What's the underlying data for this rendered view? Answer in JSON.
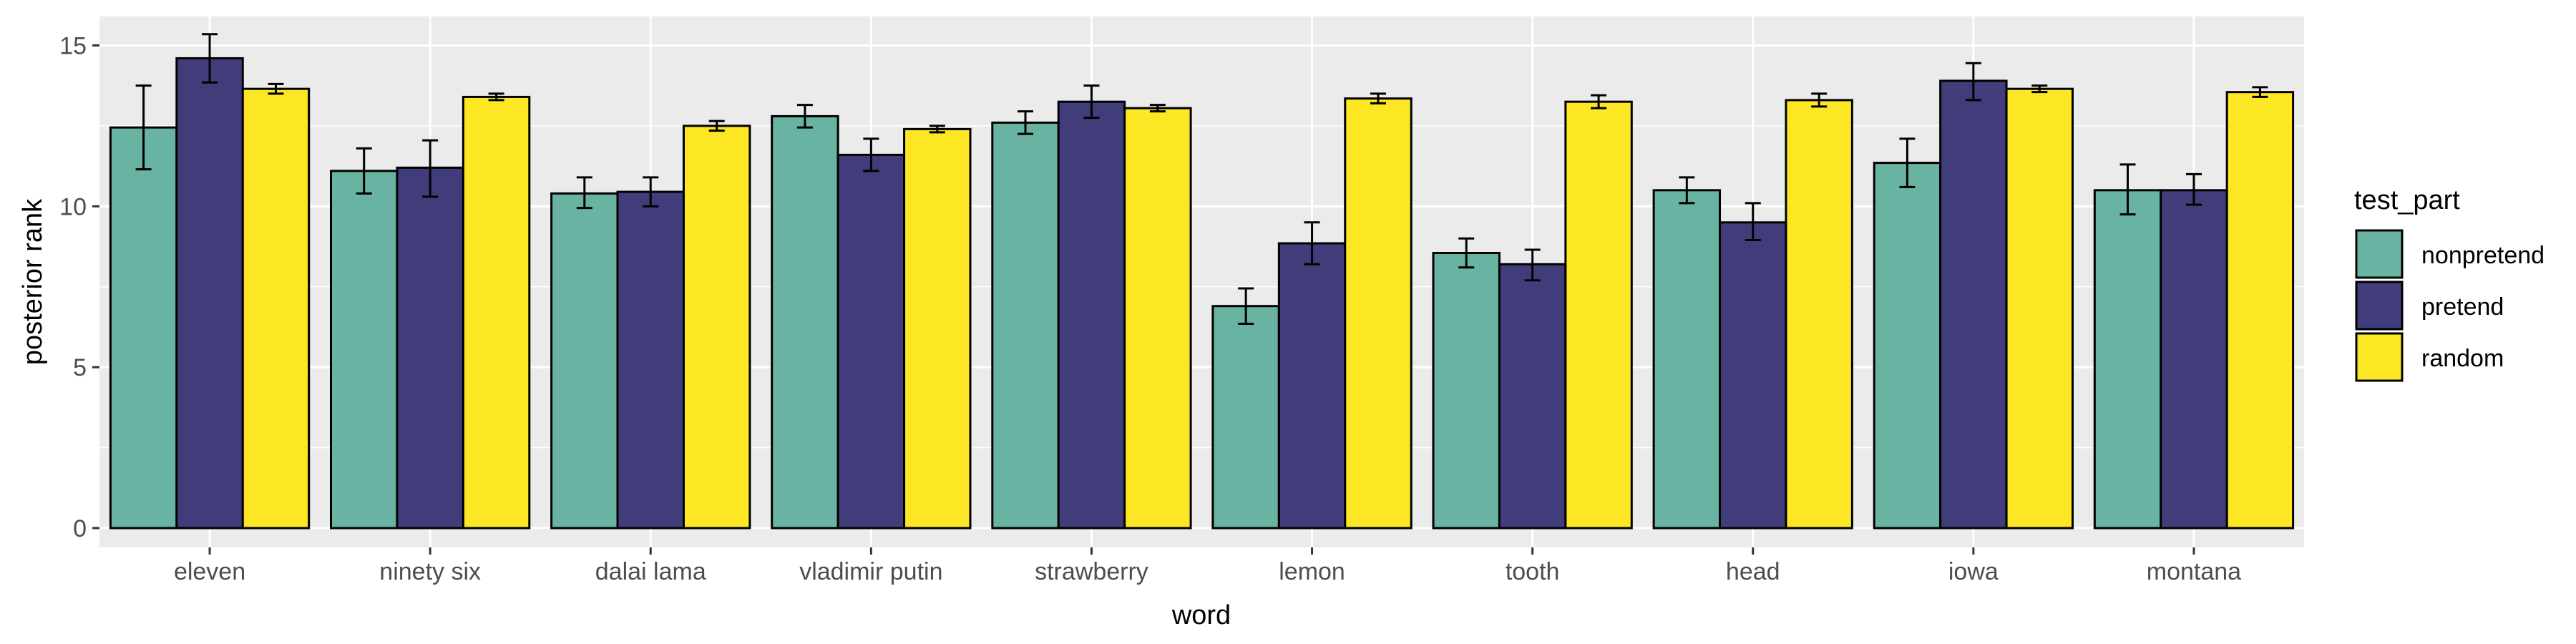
{
  "chart_data": {
    "type": "bar",
    "xlabel": "word",
    "ylabel": "posterior rank",
    "categories": [
      "eleven",
      "ninety six",
      "dalai lama",
      "vladimir putin",
      "strawberry",
      "lemon",
      "tooth",
      "head",
      "iowa",
      "montana"
    ],
    "ylim": [
      -0.6,
      15.9
    ],
    "yticks": [
      0,
      5,
      10,
      15
    ],
    "grid": true,
    "legend_title": "test_part",
    "legend_position": "right",
    "series": [
      {
        "name": "nonpretend",
        "color": "#69b3a2",
        "values": [
          12.45,
          11.1,
          10.4,
          12.8,
          12.6,
          6.9,
          8.55,
          10.5,
          11.35,
          10.5
        ],
        "err_low": [
          11.15,
          10.4,
          9.95,
          12.45,
          12.25,
          6.35,
          8.1,
          10.1,
          10.6,
          9.75
        ],
        "err_high": [
          13.75,
          11.8,
          10.9,
          13.15,
          12.95,
          7.45,
          9.0,
          10.9,
          12.1,
          11.3
        ]
      },
      {
        "name": "pretend",
        "color": "#413d7b",
        "values": [
          14.6,
          11.2,
          10.45,
          11.6,
          13.25,
          8.85,
          8.2,
          9.5,
          13.9,
          10.5
        ],
        "err_low": [
          13.85,
          10.3,
          10.0,
          11.1,
          12.75,
          8.2,
          7.7,
          8.95,
          13.3,
          10.05
        ],
        "err_high": [
          15.35,
          12.05,
          10.9,
          12.1,
          13.75,
          9.5,
          8.65,
          10.1,
          14.45,
          11.0
        ]
      },
      {
        "name": "random",
        "color": "#fde725",
        "values": [
          13.65,
          13.4,
          12.5,
          12.4,
          13.05,
          13.35,
          13.25,
          13.3,
          13.65,
          13.55
        ],
        "err_low": [
          13.5,
          13.3,
          12.35,
          12.3,
          12.95,
          13.2,
          13.05,
          13.1,
          13.55,
          13.4
        ],
        "err_high": [
          13.8,
          13.5,
          12.65,
          12.5,
          13.15,
          13.5,
          13.45,
          13.5,
          13.75,
          13.7
        ]
      }
    ]
  }
}
